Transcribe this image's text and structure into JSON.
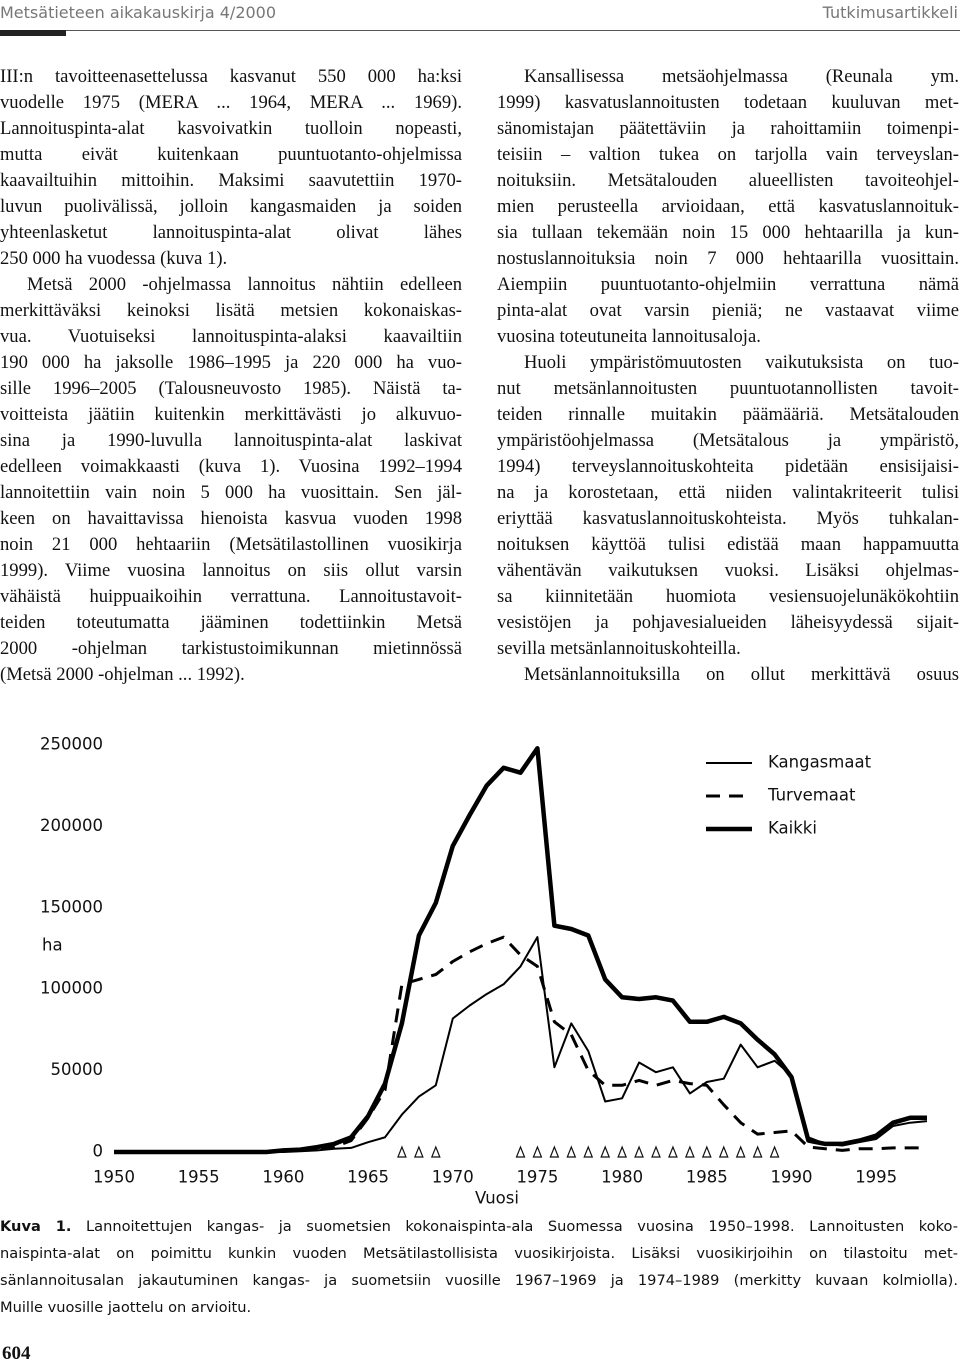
{
  "header": {
    "journal": "Metsätieteen aikakauskirja 4/2000",
    "section": "Tutkimusartikkeli"
  },
  "columns": [
    {
      "paragraphs": [
        {
          "lines": [
            "III:n tavoitteenasettelussa kasvanut 550 000 ha:ksi",
            "vuodelle 1975 (MERA ... 1964, MERA ... 1969).",
            "Lannoituspinta-alat kasvoivatkin tuolloin nopeasti,",
            "mutta eivät kuitenkaan puuntuotanto-ohjelmissa",
            "kaavailtuihin mittoihin. Maksimi saavutettiin 1970-",
            "luvun puolivälissä, jolloin kangasmaiden ja soiden",
            "yhteenlasketut lannoituspinta-alat olivat lähes",
            "250 000 ha vuodessa (kuva 1)."
          ]
        },
        {
          "lines": [
            "Metsä 2000 -ohjelmassa lannoitus nähtiin edelleen",
            "merkittäväksi keinoksi lisätä metsien kokonaiskas-",
            "vua. Vuotuiseksi lannoituspinta-alaksi kaavailtiin",
            "190 000 ha jaksolle 1986–1995 ja 220 000 ha vuo-",
            "sille 1996–2005 (Talousneuvosto 1985). Näistä ta-",
            "voitteista jäätiin kuitenkin merkittävästi jo alkuvuo-",
            "sina ja 1990-luvulla lannoituspinta-alat laskivat",
            "edelleen voimakkaasti (kuva 1). Vuosina 1992–1994",
            "lannoitettiin vain noin 5 000 ha vuosittain. Sen jäl-",
            "keen on havaittavissa hienoista kasvua vuoden 1998",
            "noin 21 000 hehtaariin (Metsätilastollinen vuosikirja",
            "1999). Viime vuosina lannoitus on siis ollut varsin",
            "vähäistä huippuaikoihin verrattuna. Lannoitustavoit-",
            "teiden toteutumatta jääminen todettiinkin Metsä",
            "2000 -ohjelman tarkistustoimikunnan mietinnössä",
            "(Metsä 2000 -ohjelman ... 1992)."
          ]
        }
      ]
    },
    {
      "paragraphs": [
        {
          "lines": [
            "Kansallisessa metsäohjelmassa (Reunala ym.",
            "1999) kasvatuslannoitusten todetaan kuuluvan met-",
            "sänomistajan päätettäviin ja rahoittamiin toimenpi-",
            "teisiin – valtion tukea on tarjolla vain terveyslan-",
            "noituksiin. Metsätalouden alueellisten tavoiteohjel-",
            "mien perusteella arvioidaan, että kasvatuslannoituk-",
            "sia tullaan tekemään noin 15 000 hehtaarilla ja kun-",
            "nostuslannoituksia noin 7 000 hehtaarilla vuosittain.",
            "Aiempiin puuntuotanto-ohjelmiin verrattuna nämä",
            "pinta-alat ovat varsin pieniä; ne vastaavat viime",
            "vuosina toteutuneita lannoitusaloja."
          ]
        },
        {
          "lines": [
            "Huoli ympäristömuutosten vaikutuksista on tuo-",
            "nut metsänlannoitusten puuntuotannollisten tavoit-",
            "teiden rinnalle muitakin päämääriä. Metsätalouden",
            "ympäristöohjelmassa (Metsätalous ja ympäristö,",
            "1994) terveyslannoituskohteita pidetään ensisijaisi-",
            "na ja korostetaan, että niiden valintakriteerit tulisi",
            "eriyttää kasvatuslannoituskohteista. Myös tuhkalan-",
            "noituksen käyttöä tulisi edistää maan happamuutta",
            "vähentävän vaikutuksen vuoksi. Lisäksi ohjelmas-",
            "sa kiinnitetään huomiota vesiensuojelunäkökohtiin",
            "vesistöjen ja pohjavesialueiden läheisyydessä sijait-",
            "sevilla metsänlannoituskohteilla."
          ]
        },
        {
          "lines": [
            "Metsänlannoituksilla on ollut merkittävä osuus"
          ]
        }
      ]
    }
  ],
  "chart_data": {
    "type": "line",
    "xlabel": "Vuosi",
    "ylabel": "ha",
    "x": [
      1950,
      1951,
      1952,
      1953,
      1954,
      1955,
      1956,
      1957,
      1958,
      1959,
      1960,
      1961,
      1962,
      1963,
      1964,
      1965,
      1966,
      1967,
      1968,
      1969,
      1970,
      1971,
      1972,
      1973,
      1974,
      1975,
      1976,
      1977,
      1978,
      1979,
      1980,
      1981,
      1982,
      1983,
      1984,
      1985,
      1986,
      1987,
      1988,
      1989,
      1990,
      1991,
      1992,
      1993,
      1994,
      1995,
      1996,
      1997,
      1998
    ],
    "series": [
      {
        "name": "Kangasmaat",
        "color": "#000000",
        "dash": "solid",
        "width": 2,
        "values": [
          0,
          0,
          0,
          0,
          0,
          0,
          0,
          0,
          0,
          0,
          0,
          500,
          1000,
          2000,
          2500,
          6000,
          9000,
          23000,
          34000,
          41000,
          82000,
          90000,
          97000,
          103000,
          114000,
          132000,
          52000,
          79000,
          62000,
          31000,
          33000,
          55000,
          49000,
          52000,
          36000,
          43000,
          45000,
          66000,
          52000,
          56000,
          47000,
          9000,
          5000,
          4000,
          6000,
          8000,
          16000,
          18000,
          19000
        ]
      },
      {
        "name": "Turvemaat",
        "color": "#000000",
        "dash": "dashed",
        "width": 3,
        "values": [
          0,
          0,
          0,
          0,
          0,
          0,
          0,
          0,
          0,
          0,
          500,
          1000,
          2000,
          3000,
          7000,
          21000,
          38000,
          103000,
          106000,
          109000,
          117000,
          123000,
          128000,
          132000,
          121000,
          114000,
          80000,
          72000,
          50000,
          41000,
          41000,
          44000,
          41000,
          44000,
          42000,
          41000,
          29000,
          18000,
          11000,
          12000,
          13000,
          3000,
          2000,
          1000,
          2000,
          2000,
          2500,
          2500,
          2500
        ]
      },
      {
        "name": "Kaikki",
        "color": "#000000",
        "dash": "solid",
        "width": 4.5,
        "values": [
          0,
          0,
          0,
          0,
          0,
          0,
          0,
          0,
          0,
          0,
          1000,
          1500,
          3000,
          5000,
          9000,
          22000,
          42000,
          79000,
          133000,
          153000,
          188000,
          207000,
          225000,
          236000,
          233000,
          248000,
          139000,
          137000,
          133000,
          106000,
          95000,
          94000,
          95000,
          93000,
          80000,
          80000,
          83000,
          79000,
          69000,
          60000,
          46000,
          7000,
          5000,
          5000,
          7000,
          10000,
          18000,
          21000,
          21000
        ]
      }
    ],
    "marked_years": [
      1967,
      1968,
      1969,
      1974,
      1975,
      1976,
      1977,
      1978,
      1979,
      1980,
      1981,
      1982,
      1983,
      1984,
      1985,
      1986,
      1987,
      1988,
      1989
    ],
    "xlim": [
      1950,
      1998
    ],
    "ylim": [
      0,
      250000
    ],
    "xticks": [
      1950,
      1955,
      1960,
      1965,
      1970,
      1975,
      1980,
      1985,
      1990,
      1995
    ],
    "yticks": [
      0,
      50000,
      100000,
      150000,
      200000,
      250000
    ],
    "grid": false,
    "legend": "top-right"
  },
  "caption": {
    "label": "Kuva 1.",
    "lines": [
      " Lannoitettujen kangas- ja suometsien kokonaispinta-ala Suomessa vuosina 1950–1998. Lannoitusten koko-",
      "naispinta-alat on poimittu kunkin vuoden Metsätilastollisista vuosikirjoista. Lisäksi vuosikirjoihin on tilastoitu met-",
      "sänlannoitusalan jakautuminen kangas- ja suometsiin vuosille 1967–1969 ja 1974–1989 (merkitty kuvaan kolmiolla).",
      "Muille vuosille jaottelu on arvioitu."
    ]
  },
  "page_number": "604"
}
